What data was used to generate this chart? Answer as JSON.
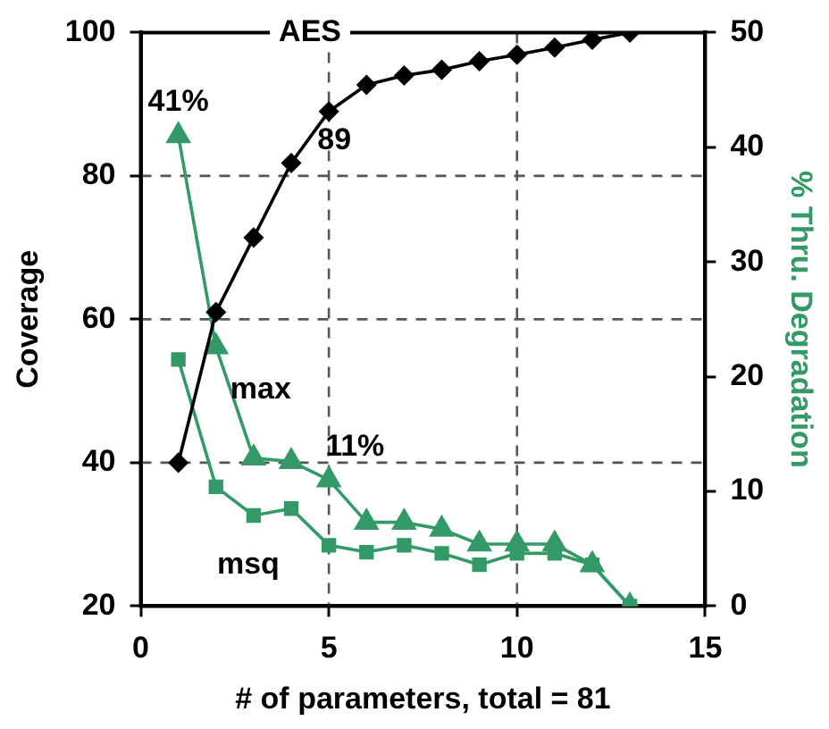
{
  "chart_data": {
    "type": "line",
    "xlabel": "# of parameters, total = 81",
    "ylabel": "Coverage",
    "y2label": "% Thru. Degradation",
    "x": [
      1,
      2,
      3,
      4,
      5,
      6,
      7,
      8,
      9,
      10,
      11,
      12,
      13
    ],
    "xlim": [
      0,
      15
    ],
    "xticks": [
      0,
      5,
      10,
      15
    ],
    "ylim": [
      20,
      100
    ],
    "yticks": [
      20,
      40,
      60,
      80,
      100
    ],
    "y2lim": [
      0,
      50
    ],
    "y2ticks": [
      0,
      10,
      20,
      30,
      40,
      50
    ],
    "grid": true,
    "legend": false,
    "series": [
      {
        "name": "AES",
        "color": "#000000",
        "marker": "diamond",
        "values": [
          40,
          61,
          71.4,
          81.8,
          89,
          92.7,
          94,
          94.8,
          96,
          96.9,
          97.9,
          99,
          100
        ],
        "value_labels": [
          null,
          null,
          null,
          null,
          "89",
          null,
          null,
          null,
          null,
          null,
          null,
          null,
          null
        ]
      },
      {
        "name": "max",
        "color": "#339966",
        "marker": "triangle",
        "axis": "y2",
        "values": [
          41,
          22.6,
          12.9,
          12.6,
          11,
          7.3,
          7.3,
          6.7,
          5.4,
          5.4,
          5.4,
          3.6,
          0
        ],
        "value_labels": [
          "41%",
          null,
          null,
          null,
          "11%",
          null,
          null,
          null,
          null,
          null,
          null,
          null,
          null
        ]
      },
      {
        "name": "msq",
        "color": "#339966",
        "marker": "square",
        "axis": "y2",
        "values": [
          21.5,
          10.4,
          7.9,
          8.5,
          5.3,
          4.7,
          5.3,
          4.6,
          3.6,
          4.6,
          4.6,
          3.6,
          0
        ]
      }
    ]
  }
}
